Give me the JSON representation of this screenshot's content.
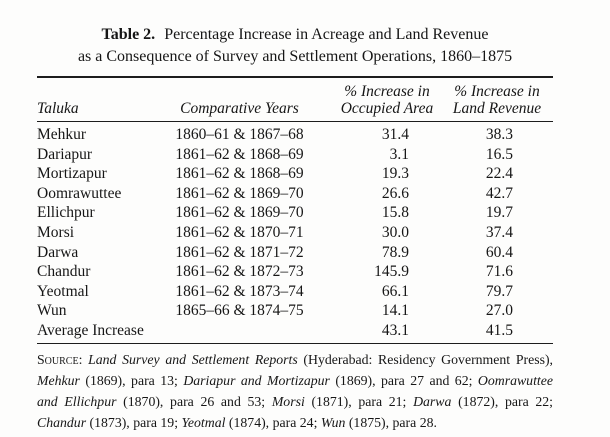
{
  "document": {
    "title": {
      "label": "Table 2.",
      "line1": "Percentage Increase in Acreage and Land Revenue",
      "line2": "as a Consequence of Survey and Settlement Operations, 1860–1875"
    }
  },
  "table": {
    "header": {
      "col1": "Taluka",
      "col2": "Comparative Years",
      "col3_line1": "% Increase in",
      "col3_line2": "Occupied Area",
      "col4_line1": "% Increase in",
      "col4_line2": "Land Revenue"
    },
    "rows": [
      {
        "taluka": "Mehkur",
        "comparative_years": "1860–61 & 1867–68",
        "occupied_area": "31.4",
        "land_revenue": "38.3"
      },
      {
        "taluka": "Dariapur",
        "comparative_years": "1861–62 & 1868–69",
        "occupied_area": "3.1",
        "land_revenue": "16.5"
      },
      {
        "taluka": "Mortizapur",
        "comparative_years": "1861–62 & 1868–69",
        "occupied_area": "19.3",
        "land_revenue": "22.4"
      },
      {
        "taluka": "Oomrawuttee",
        "comparative_years": "1861–62 & 1869–70",
        "occupied_area": "26.6",
        "land_revenue": "42.7"
      },
      {
        "taluka": "Ellichpur",
        "comparative_years": "1861–62 & 1869–70",
        "occupied_area": "15.8",
        "land_revenue": "19.7"
      },
      {
        "taluka": "Morsi",
        "comparative_years": "1861–62 & 1870–71",
        "occupied_area": "30.0",
        "land_revenue": "37.4"
      },
      {
        "taluka": "Darwa",
        "comparative_years": "1861–62 & 1871–72",
        "occupied_area": "78.9",
        "land_revenue": "60.4"
      },
      {
        "taluka": "Chandur",
        "comparative_years": "1861–62 & 1872–73",
        "occupied_area": "145.9",
        "land_revenue": "71.6"
      },
      {
        "taluka": "Yeotmal",
        "comparative_years": "1861–62 & 1873–74",
        "occupied_area": "66.1",
        "land_revenue": "79.7"
      },
      {
        "taluka": "Wun",
        "comparative_years": "1865–66 & 1874–75",
        "occupied_area": "14.1",
        "land_revenue": "27.0"
      }
    ],
    "average_row": {
      "label": "Average Increase",
      "occupied_area": "43.1",
      "land_revenue": "41.5"
    }
  },
  "source_note": {
    "segments": [
      {
        "text": "Source:",
        "style": "smallcaps"
      },
      {
        "text": " ",
        "style": "plain"
      },
      {
        "text": "Land Survey and Settlement Reports",
        "style": "italic"
      },
      {
        "text": " (Hyderabad: Residency Government Press), ",
        "style": "plain"
      },
      {
        "text": "Mehkur",
        "style": "italic"
      },
      {
        "text": " (1869), para 13; ",
        "style": "plain"
      },
      {
        "text": "Dariapur and Mortizapur",
        "style": "italic"
      },
      {
        "text": " (1869), para 27 and 62; ",
        "style": "plain"
      },
      {
        "text": "Oomrawuttee and Ellichpur",
        "style": "italic"
      },
      {
        "text": " (1870), para 26 and 53; ",
        "style": "plain"
      },
      {
        "text": "Morsi",
        "style": "italic"
      },
      {
        "text": " (1871), para 21; ",
        "style": "plain"
      },
      {
        "text": "Darwa",
        "style": "italic"
      },
      {
        "text": " (1872), para 22; ",
        "style": "plain"
      },
      {
        "text": "Chandur",
        "style": "italic"
      },
      {
        "text": " (1873), para 19; ",
        "style": "plain"
      },
      {
        "text": "Yeotmal",
        "style": "italic"
      },
      {
        "text": " (1874), para 24; ",
        "style": "plain"
      },
      {
        "text": "Wun",
        "style": "italic"
      },
      {
        "text": " (1875), para 28.",
        "style": "plain"
      }
    ]
  },
  "colors": {
    "background": "#fdfdfc",
    "text": "#161616",
    "rule": "#1d1d1d"
  }
}
